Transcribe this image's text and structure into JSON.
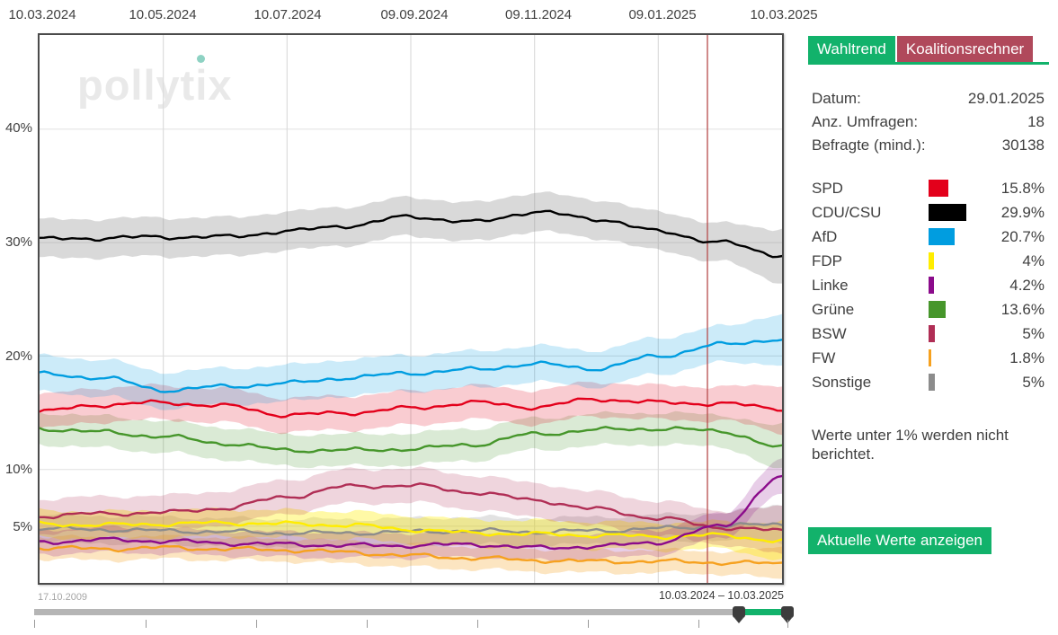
{
  "accent": {
    "green": "#12b26b",
    "maroon": "#b0495b",
    "marker_red": "#b54848",
    "cdu_band_gray": "#9a9a9a"
  },
  "watermark": {
    "text_left": "pollyt",
    "text_i": "i",
    "text_right": "x"
  },
  "top_axis": {
    "labels": [
      "10.03.2024",
      "10.05.2024",
      "10.07.2024",
      "09.09.2024",
      "09.11.2024",
      "09.01.2025",
      "10.03.2025"
    ]
  },
  "y_axis": {
    "labels": [
      "40%",
      "30%",
      "20%",
      "10%",
      "5%"
    ],
    "values": [
      40,
      30,
      20,
      10,
      5
    ]
  },
  "tabs": [
    {
      "label": "Wahltrend",
      "active": true
    },
    {
      "label": "Koalitionsrechner",
      "active": false
    }
  ],
  "info": {
    "rows": [
      {
        "label": "Datum:",
        "value": "29.01.2025"
      },
      {
        "label": "Anz. Umfragen:",
        "value": "18"
      },
      {
        "label": "Befragte (mind.):",
        "value": "30138"
      }
    ]
  },
  "parties": [
    {
      "name": "SPD",
      "color": "#e3001b",
      "value": 15.8,
      "label": "15.8%"
    },
    {
      "name": "CDU/CSU",
      "color": "#000000",
      "value": 29.9,
      "label": "29.9%"
    },
    {
      "name": "AfD",
      "color": "#009de0",
      "value": 20.7,
      "label": "20.7%"
    },
    {
      "name": "FDP",
      "color": "#ffed00",
      "value": 4.0,
      "label": "4%"
    },
    {
      "name": "Linke",
      "color": "#8b0b8b",
      "value": 4.2,
      "label": "4.2%"
    },
    {
      "name": "Grüne",
      "color": "#46962b",
      "value": 13.6,
      "label": "13.6%"
    },
    {
      "name": "BSW",
      "color": "#b02e55",
      "value": 5.0,
      "label": "5%"
    },
    {
      "name": "FW",
      "color": "#f6a11f",
      "value": 1.8,
      "label": "1.8%"
    },
    {
      "name": "Sonstige",
      "color": "#8c8c8c",
      "value": 5.0,
      "label": "5%"
    }
  ],
  "note": "Werte unter 1% werden nicht berichtet.",
  "button": {
    "label": "Aktuelle Werte anzeigen"
  },
  "range": {
    "start_label": "17.10.2009",
    "selection_label": "10.03.2024 – 10.03.2025"
  },
  "chart_data": {
    "type": "line",
    "title": "pollytix Wahltrend",
    "x_tick_labels": [
      "10.03.2024",
      "10.05.2024",
      "10.07.2024",
      "09.09.2024",
      "09.11.2024",
      "09.01.2025",
      "10.03.2025"
    ],
    "x_monthly": [
      "10.03.2024",
      "10.04.2024",
      "10.05.2024",
      "10.06.2024",
      "10.07.2024",
      "10.08.2024",
      "10.09.2024",
      "10.10.2024",
      "10.11.2024",
      "10.12.2024",
      "10.01.2025",
      "10.02.2025",
      "10.03.2025"
    ],
    "y_tick_values": [
      40,
      30,
      20,
      10,
      5
    ],
    "ylim": [
      0,
      48.3
    ],
    "grid": true,
    "unit": "%",
    "bands": "confidence band per series, half-width in pct points, widening near right edge",
    "marker": {
      "date": "29.01.2025",
      "x_fraction": 0.8995
    },
    "series": [
      {
        "name": "SPD",
        "color": "#e3001b",
        "band": 1.5,
        "values": [
          15.1,
          15.7,
          15.9,
          15.6,
          14.8,
          15.0,
          15.4,
          15.9,
          15.5,
          16.2,
          15.9,
          15.8,
          15.4
        ]
      },
      {
        "name": "CDU/CSU",
        "color": "#000000",
        "band": 1.7,
        "values": [
          30.3,
          30.4,
          30.5,
          30.5,
          31.0,
          31.5,
          32.3,
          31.8,
          32.7,
          32.1,
          31.0,
          30.0,
          28.9
        ]
      },
      {
        "name": "AfD",
        "color": "#009de0",
        "band": 1.6,
        "values": [
          18.4,
          18.1,
          17.0,
          17.3,
          17.6,
          18.1,
          18.5,
          18.8,
          19.3,
          18.9,
          20.0,
          21.0,
          21.5
        ]
      },
      {
        "name": "FDP",
        "color": "#ffed00",
        "band": 1.2,
        "values": [
          5.2,
          5.1,
          5.2,
          5.3,
          5.2,
          5.1,
          4.7,
          4.4,
          4.3,
          4.2,
          4.1,
          4.2,
          3.7
        ]
      },
      {
        "name": "Linke",
        "color": "#8b0b8b",
        "band": 1.1,
        "values": [
          3.6,
          3.8,
          3.7,
          3.5,
          3.4,
          3.3,
          3.3,
          3.4,
          3.1,
          3.2,
          3.6,
          5.0,
          9.3
        ]
      },
      {
        "name": "Grüne",
        "color": "#46962b",
        "band": 1.4,
        "values": [
          13.6,
          13.3,
          12.9,
          12.3,
          11.7,
          11.7,
          11.8,
          12.2,
          13.1,
          13.5,
          13.6,
          13.4,
          11.9
        ]
      },
      {
        "name": "BSW",
        "color": "#b02e55",
        "band": 1.5,
        "values": [
          5.9,
          6.1,
          6.2,
          6.6,
          7.6,
          8.5,
          8.6,
          8.0,
          7.3,
          6.5,
          5.7,
          4.9,
          4.6
        ]
      },
      {
        "name": "FW",
        "color": "#f6a11f",
        "band": 1.0,
        "values": [
          3.1,
          3.0,
          3.1,
          3.0,
          2.9,
          2.7,
          2.4,
          2.2,
          2.0,
          1.9,
          1.9,
          1.8,
          1.7
        ]
      },
      {
        "name": "Sonstige",
        "color": "#8c8c8c",
        "band": 1.2,
        "values": [
          4.8,
          4.7,
          4.6,
          4.5,
          4.4,
          4.4,
          4.5,
          4.6,
          4.5,
          4.6,
          4.8,
          5.0,
          5.2
        ]
      }
    ]
  }
}
